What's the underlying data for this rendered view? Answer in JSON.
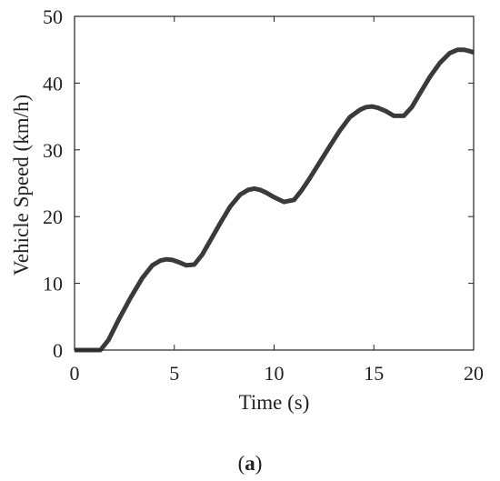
{
  "chart_data": {
    "type": "line",
    "title": "",
    "xlabel": "Time (s)",
    "ylabel": "Vehicle Speed (km/h)",
    "xlim": [
      0,
      20
    ],
    "ylim": [
      0,
      50
    ],
    "xticks": [
      0,
      5,
      10,
      15,
      20
    ],
    "yticks": [
      0,
      10,
      20,
      30,
      40,
      50
    ],
    "grid": false,
    "legend": "none",
    "series": [
      {
        "color": "#3a3a3a",
        "x": [
          0,
          0.5,
          1.0,
          1.3,
          1.7,
          2.2,
          2.8,
          3.4,
          3.9,
          4.3,
          4.6,
          4.9,
          5.2,
          5.6,
          6.0,
          6.4,
          6.8,
          7.3,
          7.8,
          8.3,
          8.7,
          9.0,
          9.3,
          9.6,
          10.0,
          10.5,
          11.0,
          11.4,
          11.8,
          12.3,
          12.8,
          13.3,
          13.8,
          14.3,
          14.6,
          14.9,
          15.2,
          15.6,
          16.0,
          16.5,
          16.9,
          17.3,
          17.8,
          18.3,
          18.8,
          19.2,
          19.5,
          19.8,
          20.0
        ],
        "y": [
          0,
          0,
          0,
          0,
          1.5,
          4.5,
          7.8,
          10.8,
          12.7,
          13.4,
          13.6,
          13.5,
          13.2,
          12.7,
          12.8,
          14.3,
          16.4,
          19.0,
          21.5,
          23.3,
          24.0,
          24.2,
          24.0,
          23.6,
          22.9,
          22.2,
          22.5,
          24.0,
          25.8,
          28.2,
          30.6,
          32.9,
          34.9,
          36.0,
          36.4,
          36.5,
          36.3,
          35.8,
          35.1,
          35.1,
          36.4,
          38.4,
          40.9,
          43.0,
          44.5,
          45.0,
          45.0,
          44.8,
          44.6
        ]
      }
    ],
    "caption": {
      "open": "(",
      "letter": "a",
      "close": ")"
    }
  }
}
